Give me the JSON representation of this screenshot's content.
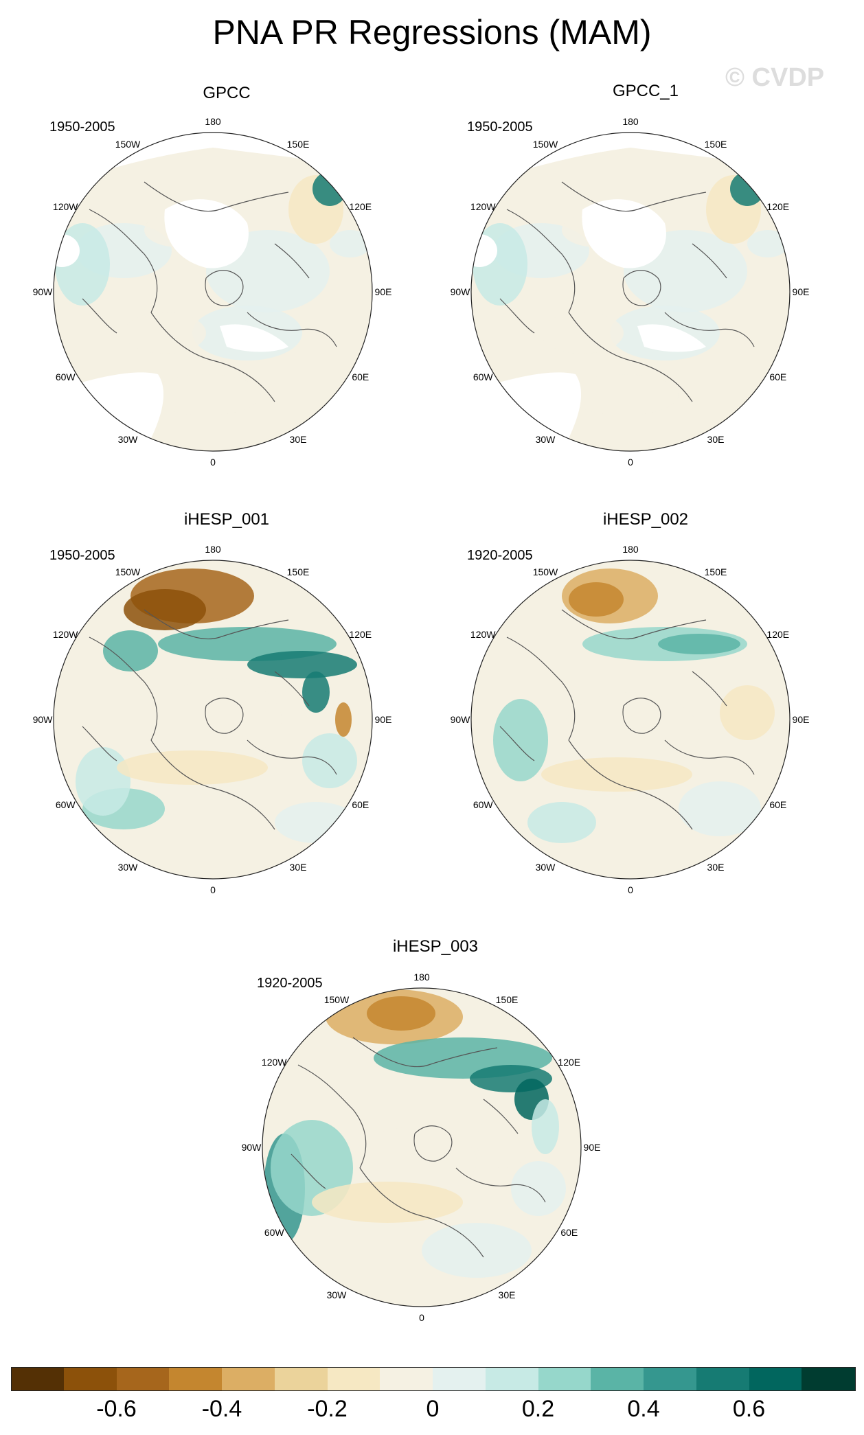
{
  "figure": {
    "title": "PNA PR Regressions (MAM)",
    "watermark": "© CVDP"
  },
  "lon_labels": {
    "top": "180",
    "bottom": "0",
    "upper_left": "150W",
    "upper_right": "150E",
    "mid_upper_left": "120W",
    "mid_upper_right": "120E",
    "left": "90W",
    "right": "90E",
    "mid_lower_left": "60W",
    "mid_lower_right": "60E",
    "lower_left": "30W",
    "lower_right": "30E"
  },
  "panels": [
    {
      "name": "GPCC",
      "period": "1950-2005",
      "observed": true
    },
    {
      "name": "GPCC_1",
      "period": "1950-2005",
      "observed": true
    },
    {
      "name": "iHESP_001",
      "period": "1950-2005",
      "observed": false
    },
    {
      "name": "iHESP_002",
      "period": "1920-2005",
      "observed": false
    },
    {
      "name": "iHESP_003",
      "period": "1920-2005",
      "observed": false
    }
  ],
  "colorbar": {
    "colors": [
      "#543005",
      "#8c510a",
      "#a6661c",
      "#c4862f",
      "#dcae64",
      "#ebd39b",
      "#f6e8c3",
      "#f5f1e3",
      "#e4f1ef",
      "#c7eae5",
      "#96d7cb",
      "#5ab4a6",
      "#35978f",
      "#167b73",
      "#01665e",
      "#003c30"
    ],
    "labels": [
      "-0.6",
      "-0.4",
      "-0.2",
      "0",
      "0.2",
      "0.4",
      "0.6"
    ]
  }
}
